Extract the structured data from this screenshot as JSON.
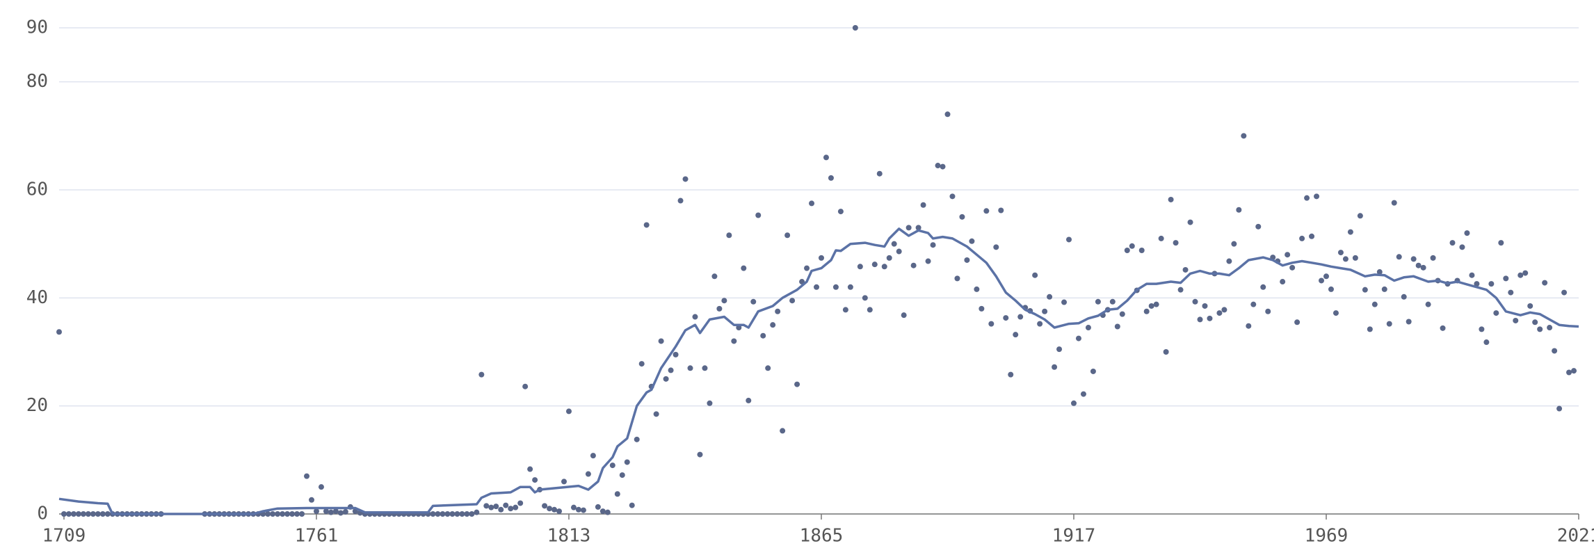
{
  "chart_data": {
    "type": "scatter",
    "xlim": [
      1708,
      2021
    ],
    "xticks": [
      1709,
      1761,
      1813,
      1865,
      1917,
      1969,
      2021
    ],
    "ylim": [
      0,
      90
    ],
    "yticks": [
      0,
      20,
      40,
      60,
      80,
      90
    ],
    "grid": true,
    "series": [
      {
        "type": "scatter",
        "color": "#5a6789",
        "x": [
          1708,
          1709,
          1710,
          1711,
          1712,
          1713,
          1714,
          1715,
          1716,
          1717,
          1718,
          1719,
          1720,
          1721,
          1722,
          1723,
          1724,
          1725,
          1726,
          1727,
          1728,
          1729,
          1738,
          1739,
          1740,
          1741,
          1742,
          1743,
          1744,
          1745,
          1746,
          1747,
          1748,
          1749,
          1750,
          1751,
          1752,
          1753,
          1754,
          1755,
          1756,
          1757,
          1758,
          1759,
          1760,
          1761,
          1762,
          1763,
          1764,
          1765,
          1766,
          1767,
          1768,
          1769,
          1770,
          1771,
          1772,
          1773,
          1774,
          1775,
          1776,
          1777,
          1778,
          1779,
          1780,
          1781,
          1782,
          1783,
          1784,
          1785,
          1786,
          1787,
          1788,
          1789,
          1790,
          1791,
          1792,
          1793,
          1794,
          1795,
          1796,
          1797,
          1798,
          1799,
          1800,
          1801,
          1802,
          1803,
          1804,
          1805,
          1806,
          1807,
          1808,
          1809,
          1810,
          1811,
          1812,
          1813,
          1814,
          1815,
          1816,
          1817,
          1818,
          1819,
          1820,
          1821,
          1822,
          1823,
          1824,
          1825,
          1826,
          1827,
          1828,
          1829,
          1830,
          1831,
          1832,
          1833,
          1834,
          1835,
          1836,
          1837,
          1838,
          1839,
          1840,
          1841,
          1842,
          1843,
          1844,
          1845,
          1846,
          1847,
          1848,
          1849,
          1850,
          1851,
          1852,
          1853,
          1854,
          1855,
          1856,
          1857,
          1858,
          1859,
          1860,
          1861,
          1862,
          1863,
          1864,
          1865,
          1866,
          1867,
          1868,
          1869,
          1870,
          1871,
          1872,
          1873,
          1874,
          1875,
          1876,
          1877,
          1878,
          1879,
          1880,
          1881,
          1882,
          1883,
          1884,
          1885,
          1886,
          1887,
          1888,
          1889,
          1890,
          1891,
          1892,
          1893,
          1894,
          1895,
          1896,
          1897,
          1898,
          1899,
          1900,
          1901,
          1902,
          1903,
          1904,
          1905,
          1906,
          1907,
          1908,
          1909,
          1910,
          1911,
          1912,
          1913,
          1914,
          1915,
          1916,
          1917,
          1918,
          1919,
          1920,
          1921,
          1922,
          1923,
          1924,
          1925,
          1926,
          1927,
          1928,
          1929,
          1930,
          1931,
          1932,
          1933,
          1934,
          1935,
          1936,
          1937,
          1938,
          1939,
          1940,
          1941,
          1942,
          1943,
          1944,
          1945,
          1946,
          1947,
          1948,
          1949,
          1950,
          1951,
          1952,
          1953,
          1954,
          1955,
          1956,
          1957,
          1958,
          1959,
          1960,
          1961,
          1962,
          1963,
          1964,
          1965,
          1966,
          1967,
          1968,
          1969,
          1970,
          1971,
          1972,
          1973,
          1974,
          1975,
          1976,
          1977,
          1978,
          1979,
          1980,
          1981,
          1982,
          1983,
          1984,
          1985,
          1986,
          1987,
          1988,
          1989,
          1990,
          1991,
          1992,
          1993,
          1994,
          1995,
          1996,
          1997,
          1998,
          1999,
          2000,
          2001,
          2002,
          2003,
          2004,
          2005,
          2006,
          2007,
          2008,
          2009,
          2010,
          2011,
          2012,
          2013,
          2014,
          2015,
          2016,
          2017,
          2018,
          2019,
          2020
        ],
        "values": [
          33.7,
          0,
          0,
          0,
          0,
          0,
          0,
          0,
          0,
          0,
          0,
          0,
          0,
          0,
          0,
          0,
          0,
          0,
          0,
          0,
          0,
          0,
          0,
          0,
          0,
          0,
          0,
          0,
          0,
          0,
          0,
          0,
          0,
          0,
          0,
          0,
          0,
          0,
          0,
          0,
          0,
          0,
          0,
          7,
          2.6,
          0.5,
          5,
          0.5,
          0.3,
          0.5,
          0.2,
          0.4,
          1.3,
          0.5,
          0.2,
          0,
          0,
          0,
          0,
          0,
          0,
          0,
          0,
          0,
          0,
          0,
          0,
          0,
          0,
          0,
          0,
          0,
          0,
          0,
          0,
          0,
          0,
          0,
          0.3,
          25.8,
          1.5,
          1.2,
          1.4,
          0.8,
          1.6,
          1.0,
          1.2,
          2,
          23.6,
          8.3,
          6.3,
          4.5,
          1.5,
          1,
          0.8,
          0.5,
          6,
          19,
          1.2,
          0.8,
          0.7,
          7.4,
          10.8,
          1.3,
          0.5,
          0.3,
          9,
          3.7,
          7.2,
          9.6,
          1.6,
          13.8,
          27.8,
          53.5,
          23.6,
          18.5,
          32,
          25,
          26.6,
          29.5,
          58,
          62,
          27,
          36.5,
          11,
          27,
          20.5,
          44,
          38,
          39.5,
          51.6,
          32,
          34.5,
          45.5,
          21,
          39.3,
          55.3,
          33,
          27,
          35,
          37.5,
          15.4,
          51.6,
          39.5,
          24,
          43,
          45.5,
          57.5,
          42,
          47.4,
          66,
          62.2,
          42,
          56,
          37.8,
          42,
          90,
          45.8,
          40,
          37.8,
          46.2,
          63,
          45.8,
          47.4,
          50,
          48.6,
          36.8,
          53,
          46,
          53,
          57.2,
          46.8,
          49.8,
          64.5,
          64.3,
          74,
          58.8,
          43.6,
          55,
          47,
          50.5,
          41.6,
          38,
          56.1,
          35.2,
          49.4,
          56.2,
          36.3,
          25.8,
          33.2,
          36.5,
          38.2,
          37.6,
          44.2,
          35.2,
          37.5,
          40.2,
          27.2,
          30.5,
          39.2,
          50.8,
          20.5,
          32.5,
          22.2,
          34.5,
          26.4,
          39.3,
          36.8,
          37.8,
          39.3,
          34.7,
          37,
          48.8,
          49.6,
          41.4,
          48.8,
          37.5,
          38.5,
          38.8,
          51,
          30,
          58.2,
          50.2,
          41.5,
          45.2,
          54,
          39.3,
          36,
          38.5,
          36.2,
          44.5,
          37.2,
          37.8,
          46.8,
          50,
          56.3,
          70,
          34.8,
          38.8,
          53.2,
          42,
          37.5,
          47.5,
          46.8,
          43,
          48,
          45.6,
          35.5,
          51,
          58.5,
          51.4,
          58.8,
          43.2,
          44,
          41.6,
          37.2,
          48.4,
          47.2,
          52.2,
          47.4,
          55.2,
          41.5,
          34.2,
          38.8,
          44.8,
          41.6,
          35.2,
          57.6,
          47.6,
          40.2,
          35.6,
          47.2,
          46,
          45.6,
          38.8,
          47.4,
          43.2,
          34.4,
          42.6,
          50.2,
          43.2,
          49.4,
          52,
          44.2,
          42.6,
          34.2,
          31.8,
          42.6,
          37.2,
          50.2,
          43.6,
          41,
          35.8,
          44.2,
          44.6,
          38.5,
          35.5,
          34.2,
          42.8,
          34.5,
          30.2,
          19.5,
          41,
          26.2,
          26.5
        ]
      },
      {
        "type": "line",
        "color": "#5b72a6",
        "x": [
          1708,
          1712,
          1716,
          1718,
          1719,
          1748,
          1750,
          1753,
          1759,
          1769,
          1771,
          1784,
          1785,
          1794,
          1795,
          1797,
          1801,
          1803,
          1805,
          1806,
          1807,
          1815,
          1817,
          1819,
          1820,
          1822,
          1823,
          1825,
          1827,
          1829,
          1830,
          1832,
          1835,
          1837,
          1839,
          1840,
          1842,
          1845,
          1847,
          1849,
          1850,
          1852,
          1855,
          1857,
          1860,
          1862,
          1863,
          1865,
          1867,
          1868,
          1869,
          1871,
          1874,
          1876,
          1878,
          1879,
          1881,
          1883,
          1885,
          1887,
          1888,
          1890,
          1892,
          1895,
          1897,
          1899,
          1901,
          1903,
          1905,
          1907,
          1909,
          1911,
          1913,
          1916,
          1918,
          1920,
          1922,
          1924,
          1926,
          1928,
          1930,
          1932,
          1934,
          1937,
          1939,
          1941,
          1943,
          1945,
          1947,
          1949,
          1951,
          1953,
          1956,
          1958,
          1960,
          1962,
          1964,
          1966,
          1968,
          1970,
          1972,
          1974,
          1977,
          1979,
          1981,
          1983,
          1985,
          1987,
          1990,
          1992,
          1994,
          1996,
          1998,
          2000,
          2002,
          2004,
          2006,
          2009,
          2011,
          2013,
          2015,
          2017,
          2019,
          2021
        ],
        "values": [
          2.8,
          2.3,
          2,
          1.9,
          0,
          0,
          0.5,
          1,
          1.1,
          1.1,
          0.3,
          0.3,
          1.5,
          1.8,
          3,
          3.8,
          4,
          5,
          5,
          4,
          4.5,
          5.2,
          4.5,
          6,
          8.5,
          10.5,
          12.5,
          14,
          20,
          22.5,
          23,
          27,
          31,
          34,
          35,
          33.5,
          36,
          36.5,
          35,
          35,
          34.5,
          37.5,
          38.5,
          40,
          41.5,
          43,
          45,
          45.5,
          47,
          48.8,
          48.7,
          50,
          50.2,
          49.8,
          49.5,
          51,
          52.8,
          51.5,
          52.5,
          52,
          51,
          51.3,
          51,
          49.5,
          48,
          46.5,
          44,
          41,
          39.5,
          37.8,
          37,
          36,
          34.5,
          35.2,
          35.3,
          36.2,
          36.7,
          37.8,
          38,
          39.5,
          41.5,
          42.6,
          42.6,
          43,
          42.8,
          44.5,
          45,
          44.5,
          44.5,
          44.2,
          45.5,
          47,
          47.5,
          47,
          46,
          46.5,
          46.8,
          46.5,
          46.2,
          45.8,
          45.5,
          45.2,
          44,
          44.3,
          44.2,
          43.2,
          43.8,
          44,
          43,
          43.2,
          42.7,
          43,
          42.5,
          42,
          41.5,
          40,
          37.5,
          36.8,
          37.3,
          37,
          36,
          35,
          34.8,
          34.7
        ]
      }
    ]
  }
}
